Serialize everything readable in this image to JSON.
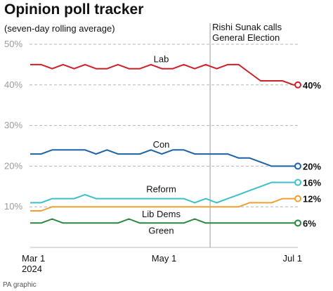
{
  "title": "Opinion poll tracker",
  "subtitle": "(seven-day rolling average)",
  "credit": "PA graphic",
  "annotation": {
    "line1": "Rishi Sunak calls",
    "line2": "General Election",
    "date": "2024-05-22"
  },
  "chart_data": {
    "type": "line",
    "ylim": [
      0,
      50
    ],
    "yticks": [
      {
        "value": 10,
        "label": "10%"
      },
      {
        "value": 20,
        "label": "20%"
      },
      {
        "value": 30,
        "label": "30%"
      },
      {
        "value": 40,
        "label": "40%"
      },
      {
        "value": 50,
        "label": "50%"
      }
    ],
    "xlim": [
      "2024-03-01",
      "2024-07-01"
    ],
    "xticks": [
      {
        "date": "2024-03-01",
        "label": "Mar 1",
        "sublabel": "2024"
      },
      {
        "date": "2024-05-01",
        "label": "May 1"
      },
      {
        "date": "2024-07-01",
        "label": "Jul 1"
      }
    ],
    "x": [
      "2024-03-01",
      "2024-03-06",
      "2024-03-11",
      "2024-03-16",
      "2024-03-21",
      "2024-03-26",
      "2024-03-31",
      "2024-04-05",
      "2024-04-10",
      "2024-04-15",
      "2024-04-20",
      "2024-04-25",
      "2024-04-30",
      "2024-05-05",
      "2024-05-10",
      "2024-05-15",
      "2024-05-20",
      "2024-05-25",
      "2024-05-30",
      "2024-06-04",
      "2024-06-09",
      "2024-06-14",
      "2024-06-19",
      "2024-06-24",
      "2024-06-29",
      "2024-07-01"
    ],
    "series": [
      {
        "name": "Lab",
        "color": "#cf2027",
        "end_label": "40%",
        "values": [
          45,
          45,
          44,
          45,
          44,
          45,
          44,
          44,
          45,
          44,
          44,
          45,
          44,
          44,
          45,
          44,
          45,
          44,
          45,
          45,
          43,
          41,
          41,
          41,
          40,
          40
        ]
      },
      {
        "name": "Con",
        "color": "#1d62a6",
        "end_label": "20%",
        "values": [
          23,
          23,
          24,
          24,
          24,
          24,
          23,
          24,
          23,
          23,
          23,
          24,
          23,
          24,
          24,
          23,
          23,
          23,
          23,
          22,
          22,
          21,
          20,
          20,
          20,
          20
        ]
      },
      {
        "name": "Reform",
        "color": "#3cbfc7",
        "end_label": "16%",
        "values": [
          11,
          11,
          12,
          12,
          12,
          13,
          12,
          12,
          12,
          12,
          12,
          12,
          12,
          12,
          12,
          11,
          12,
          11,
          12,
          13,
          14,
          15,
          16,
          16,
          16,
          16
        ]
      },
      {
        "name": "Lib Dems",
        "color": "#f0a032",
        "end_label": "12%",
        "values": [
          9,
          9,
          10,
          10,
          10,
          10,
          10,
          10,
          10,
          10,
          10,
          10,
          10,
          10,
          10,
          10,
          10,
          10,
          10,
          10,
          11,
          11,
          11,
          12,
          12,
          12
        ]
      },
      {
        "name": "Green",
        "color": "#2e8540",
        "end_label": "6%",
        "values": [
          6,
          6,
          7,
          6,
          6,
          6,
          6,
          6,
          6,
          7,
          6,
          6,
          6,
          6,
          6,
          7,
          6,
          6,
          6,
          6,
          6,
          6,
          6,
          6,
          6,
          6
        ]
      }
    ]
  }
}
